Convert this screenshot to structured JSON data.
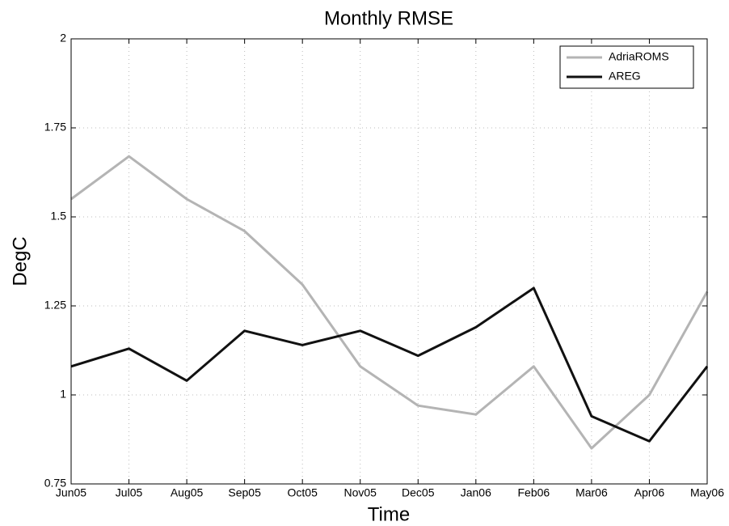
{
  "chart_data": {
    "type": "line",
    "title": "Monthly RMSE",
    "x_label": "Time",
    "y_label": "DegC",
    "categories": [
      "Jun05",
      "Jul05",
      "Aug05",
      "Sep05",
      "Oct05",
      "Nov05",
      "Dec05",
      "Jan06",
      "Feb06",
      "Mar06",
      "Apr06",
      "May06"
    ],
    "series": [
      {
        "name": "AdriaROMS",
        "color": "#b4b4b4",
        "values": [
          1.55,
          1.67,
          1.55,
          1.46,
          1.31,
          1.08,
          0.97,
          0.945,
          1.08,
          0.85,
          1.0,
          1.29
        ]
      },
      {
        "name": "AREG",
        "color": "#111111",
        "values": [
          1.08,
          1.13,
          1.04,
          1.18,
          1.14,
          1.18,
          1.11,
          1.19,
          1.3,
          0.94,
          0.87,
          1.08
        ]
      }
    ],
    "ylim": [
      0.75,
      2
    ],
    "yticks": [
      0.75,
      1,
      1.25,
      1.5,
      1.75,
      2
    ],
    "grid": true,
    "legend": "northeast"
  }
}
